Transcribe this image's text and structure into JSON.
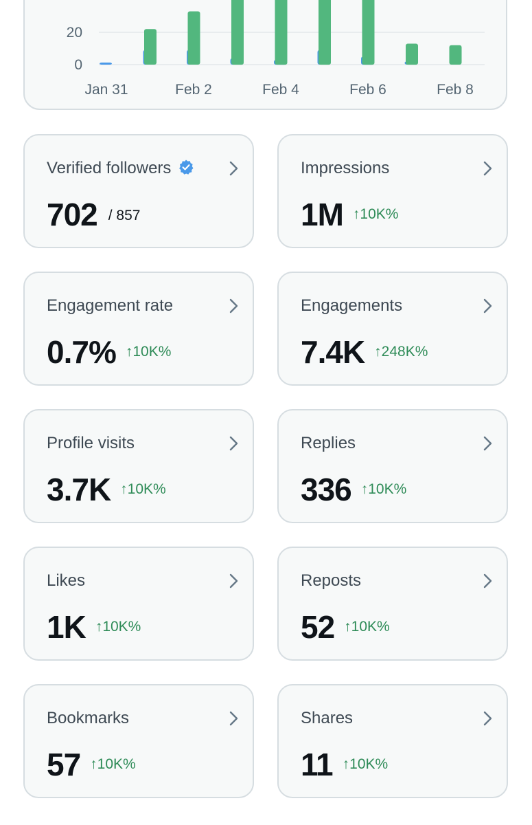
{
  "chart_data": {
    "type": "bar",
    "y_ticks": [
      "20",
      "0"
    ],
    "x_ticks": [
      "Jan 31",
      "Feb 2",
      "Feb 4",
      "Feb 6",
      "Feb 8"
    ],
    "ylim": [
      0,
      45
    ],
    "grid": true,
    "series": [
      {
        "color": "#4a99e9",
        "values": [
          1,
          9,
          9,
          4,
          3,
          9,
          5,
          2,
          null
        ]
      },
      {
        "color": "#52b77e",
        "values": [
          null,
          22,
          33,
          45,
          45,
          45,
          45,
          13,
          12
        ]
      }
    ]
  },
  "colors": {
    "accent_up": "#2e8b57",
    "verified": "#4a99e9"
  },
  "metrics": [
    {
      "name": "verified-followers",
      "label": "Verified followers",
      "value": "702",
      "total": "/ 857",
      "verified": true
    },
    {
      "name": "impressions",
      "label": "Impressions",
      "value": "1M",
      "change": "10K%"
    },
    {
      "name": "engagement-rate",
      "label": "Engagement rate",
      "value": "0.7%",
      "change": "10K%"
    },
    {
      "name": "engagements",
      "label": "Engagements",
      "value": "7.4K",
      "change": "248K%"
    },
    {
      "name": "profile-visits",
      "label": "Profile visits",
      "value": "3.7K",
      "change": "10K%"
    },
    {
      "name": "replies",
      "label": "Replies",
      "value": "336",
      "change": "10K%"
    },
    {
      "name": "likes",
      "label": "Likes",
      "value": "1K",
      "change": "10K%"
    },
    {
      "name": "reposts",
      "label": "Reposts",
      "value": "52",
      "change": "10K%"
    },
    {
      "name": "bookmarks",
      "label": "Bookmarks",
      "value": "57",
      "change": "10K%"
    },
    {
      "name": "shares",
      "label": "Shares",
      "value": "11",
      "change": "10K%"
    }
  ],
  "icons": {
    "chevron": "chevron-right-icon",
    "verified": "verified-badge-icon"
  }
}
